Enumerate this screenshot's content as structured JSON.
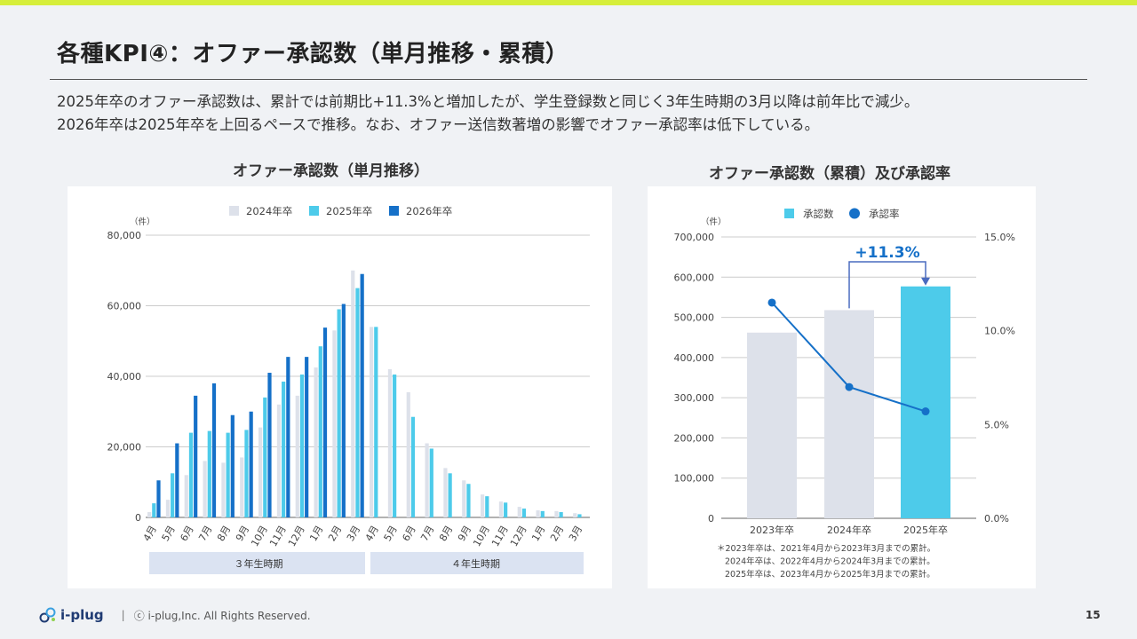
{
  "title": "各種KPI④：オファー承認数（単月推移・累積）",
  "description": [
    "2025年卒のオファー承認数は、累計では前期比+11.3%と増加したが、学生登録数と同じく3年生時期の3月以降は前年比で減少。",
    "2026年卒は2025年卒を上回るペースで推移。なお、オファー送信数著増の影響でオファー承認率は低下している。"
  ],
  "colors": {
    "s2024": "#dde1ea",
    "s2025": "#4dcbea",
    "s2026": "#1570c8",
    "rate": "#1570c8",
    "highlight": "#4dcbea",
    "arrow": "#4a6bbf"
  },
  "footer": {
    "logo": "i-plug",
    "sep": "|",
    "copyright": "ⓒ i-plug,Inc. All Rights Reserved.",
    "page": "15"
  },
  "chart_data": [
    {
      "type": "bar",
      "title": "オファー承認数（単月推移）",
      "unit": "（件）",
      "ylim": [
        0,
        80000
      ],
      "yticks": [
        "0",
        "20,000",
        "40,000",
        "60,000",
        "80,000"
      ],
      "categories": [
        "4月",
        "5月",
        "6月",
        "7月",
        "8月",
        "9月",
        "10月",
        "11月",
        "12月",
        "1月",
        "2月",
        "3月",
        "4月",
        "5月",
        "6月",
        "7月",
        "8月",
        "9月",
        "10月",
        "11月",
        "12月",
        "1月",
        "2月",
        "3月"
      ],
      "series": [
        {
          "name": "2024年卒",
          "values": [
            1500,
            5000,
            12000,
            16000,
            15500,
            17000,
            25500,
            32000,
            34500,
            42500,
            53000,
            70000,
            54000,
            42000,
            35500,
            21000,
            14000,
            10500,
            6500,
            4500,
            3000,
            2000,
            1800,
            1200
          ]
        },
        {
          "name": "2025年卒",
          "values": [
            4000,
            12500,
            24000,
            24500,
            24000,
            24800,
            34000,
            38500,
            40500,
            48500,
            59000,
            65000,
            54000,
            40500,
            28500,
            19500,
            12500,
            9500,
            6000,
            4200,
            2500,
            1800,
            1500,
            900
          ]
        },
        {
          "name": "2026年卒",
          "values": [
            10500,
            21000,
            34500,
            38000,
            29000,
            30000,
            41000,
            45500,
            45500,
            53800,
            60500,
            69000,
            null,
            null,
            null,
            null,
            null,
            null,
            null,
            null,
            null,
            null,
            null,
            null
          ]
        }
      ],
      "periods": [
        "３年生時期",
        "４年生時期"
      ]
    },
    {
      "type": "bar",
      "title": "オファー承認数（累積）及び承認率",
      "unit": "（件）",
      "ylim": [
        0,
        700000
      ],
      "yticks": [
        "0",
        "100,000",
        "200,000",
        "300,000",
        "400,000",
        "500,000",
        "600,000",
        "700,000"
      ],
      "y2lim": [
        0,
        15
      ],
      "y2ticks": [
        "0.0%",
        "5.0%",
        "10.0%",
        "15.0%"
      ],
      "categories": [
        "2023年卒",
        "2024年卒",
        "2025年卒"
      ],
      "series": [
        {
          "name": "承認数",
          "values": [
            462000,
            518000,
            577000
          ]
        },
        {
          "name": "承認率",
          "values": [
            11.5,
            7.0,
            5.7
          ]
        }
      ],
      "annotation": "+11.3%",
      "notes": [
        "＊2023年卒は、2021年4月から2023年3月までの累計。",
        "2024年卒は、2022年4月から2024年3月までの累計。",
        "2025年卒は、2023年4月から2025年3月までの累計。"
      ]
    }
  ]
}
